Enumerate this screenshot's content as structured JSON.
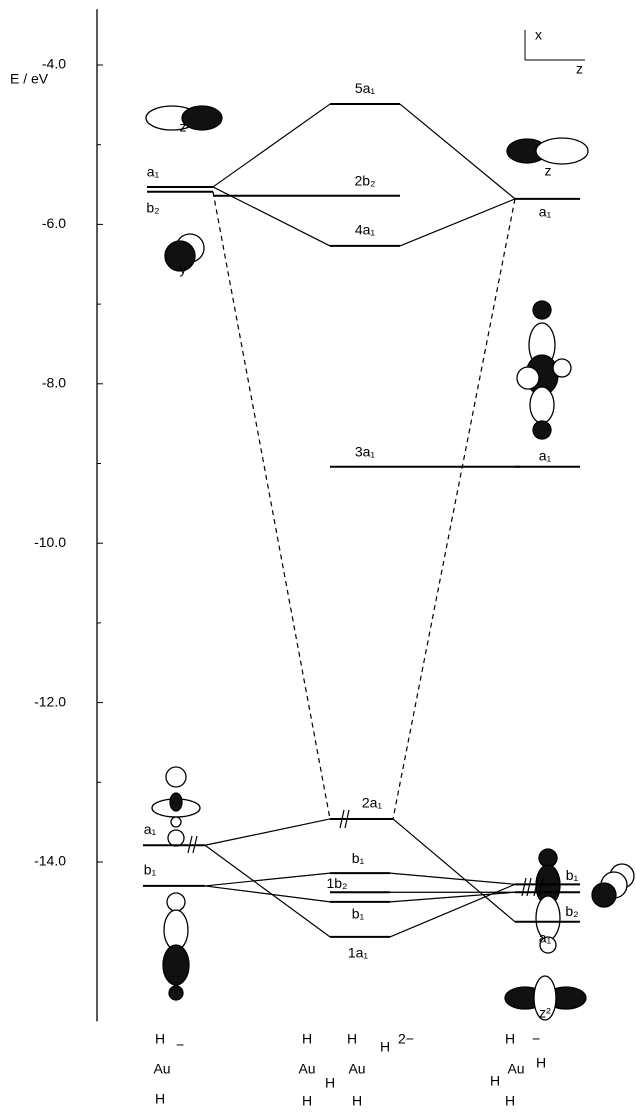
{
  "axis": {
    "title": "E / eV",
    "range": [
      -3.3,
      -16.0
    ],
    "ticks": [
      {
        "value": -4,
        "label": "-4.0"
      },
      {
        "value": -6,
        "label": "-6.0"
      },
      {
        "value": -8,
        "label": "-8.0"
      },
      {
        "value": -10,
        "label": "-10.0"
      },
      {
        "value": -12,
        "label": "-12.0"
      },
      {
        "value": -14,
        "label": "-14.0"
      }
    ]
  },
  "levels": {
    "left": [
      {
        "label": "a₁",
        "energy": -5.53
      },
      {
        "label": "b₂",
        "energy": -5.59
      },
      {
        "label": "a₁",
        "energy": -13.79
      },
      {
        "label": "b₁",
        "energy": -14.3
      }
    ],
    "center": [
      {
        "label": "5a₁",
        "energy": -4.49
      },
      {
        "label": "2b₂",
        "energy": -5.64
      },
      {
        "label": "4a₁",
        "energy": -6.27
      },
      {
        "label": "3a₁",
        "energy": -9.04
      },
      {
        "label": "2a₁",
        "energy": -13.46
      },
      {
        "label": "b₁",
        "energy": -14.14
      },
      {
        "label": "1b₂",
        "energy": -14.38
      },
      {
        "label": "b₁",
        "energy": -14.5
      },
      {
        "label": "1a₁",
        "energy": -14.94
      }
    ],
    "right": [
      {
        "label": "a₁",
        "energy": -5.68
      },
      {
        "label": "a₁",
        "energy": -9.04
      },
      {
        "label": "b₁",
        "energy": -14.28
      },
      {
        "label": "b₂",
        "energy": -14.38
      },
      {
        "label": "a₁",
        "energy": -14.75
      }
    ]
  },
  "orbital_labels": [
    "z",
    "y",
    "z",
    "z²"
  ],
  "frame_axes": [
    "x",
    "z"
  ],
  "fragments": [
    {
      "charge": "−",
      "atoms": [
        "H",
        "Au",
        "H"
      ]
    },
    {
      "charge": "2−",
      "atoms": [
        "H",
        "H",
        "Au",
        "H",
        "Au",
        "H",
        "H",
        "H"
      ]
    },
    {
      "charge": "−",
      "atoms": [
        "H",
        "H",
        "Au",
        "H",
        "H"
      ]
    }
  ]
}
